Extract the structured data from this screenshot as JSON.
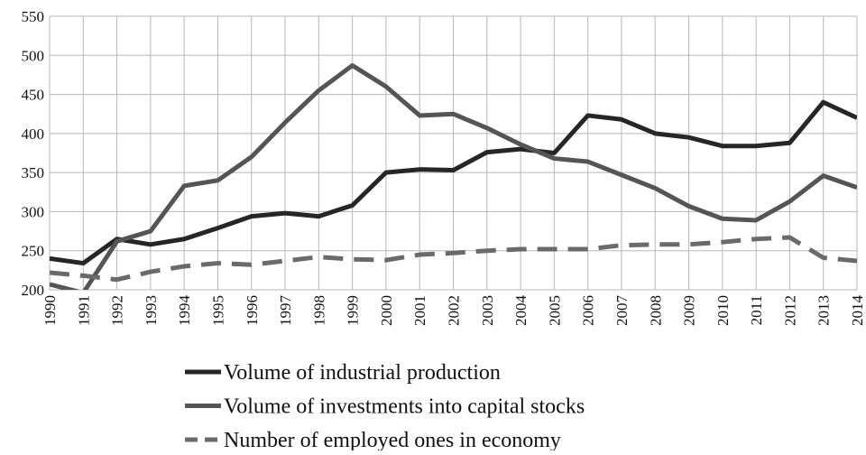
{
  "chart_data": {
    "type": "line",
    "x": [
      "1990",
      "1991",
      "1992",
      "1993",
      "1994",
      "1995",
      "1996",
      "1997",
      "1998",
      "1999",
      "2000",
      "2001",
      "2002",
      "2003",
      "2004",
      "2005",
      "2006",
      "2007",
      "2008",
      "2009",
      "2010",
      "2011",
      "2012",
      "2013",
      "2014"
    ],
    "series": [
      {
        "name": "Volume of industrial production",
        "color": "#262626",
        "dashed": false,
        "values": [
          240,
          234,
          265,
          258,
          265,
          279,
          294,
          298,
          294,
          308,
          350,
          354,
          353,
          376,
          380,
          375,
          423,
          418,
          400,
          395,
          384,
          384,
          388,
          440,
          420
        ]
      },
      {
        "name": "Volume of investments into capital stocks",
        "color": "#555555",
        "dashed": false,
        "values": [
          207,
          196,
          262,
          275,
          333,
          340,
          370,
          414,
          455,
          487,
          460,
          423,
          425,
          407,
          386,
          368,
          364,
          347,
          330,
          307,
          291,
          289,
          313,
          346,
          331
        ]
      },
      {
        "name": "Number of employed ones in economy",
        "color": "#6a6a6a",
        "dashed": true,
        "values": [
          222,
          218,
          213,
          223,
          230,
          234,
          232,
          237,
          242,
          239,
          238,
          245,
          247,
          250,
          252,
          252,
          252,
          257,
          258,
          258,
          261,
          265,
          267,
          241,
          237
        ]
      }
    ],
    "ylim": [
      200,
      550
    ],
    "yticks": [
      200,
      250,
      300,
      350,
      400,
      450,
      500,
      550
    ],
    "grid": true
  }
}
